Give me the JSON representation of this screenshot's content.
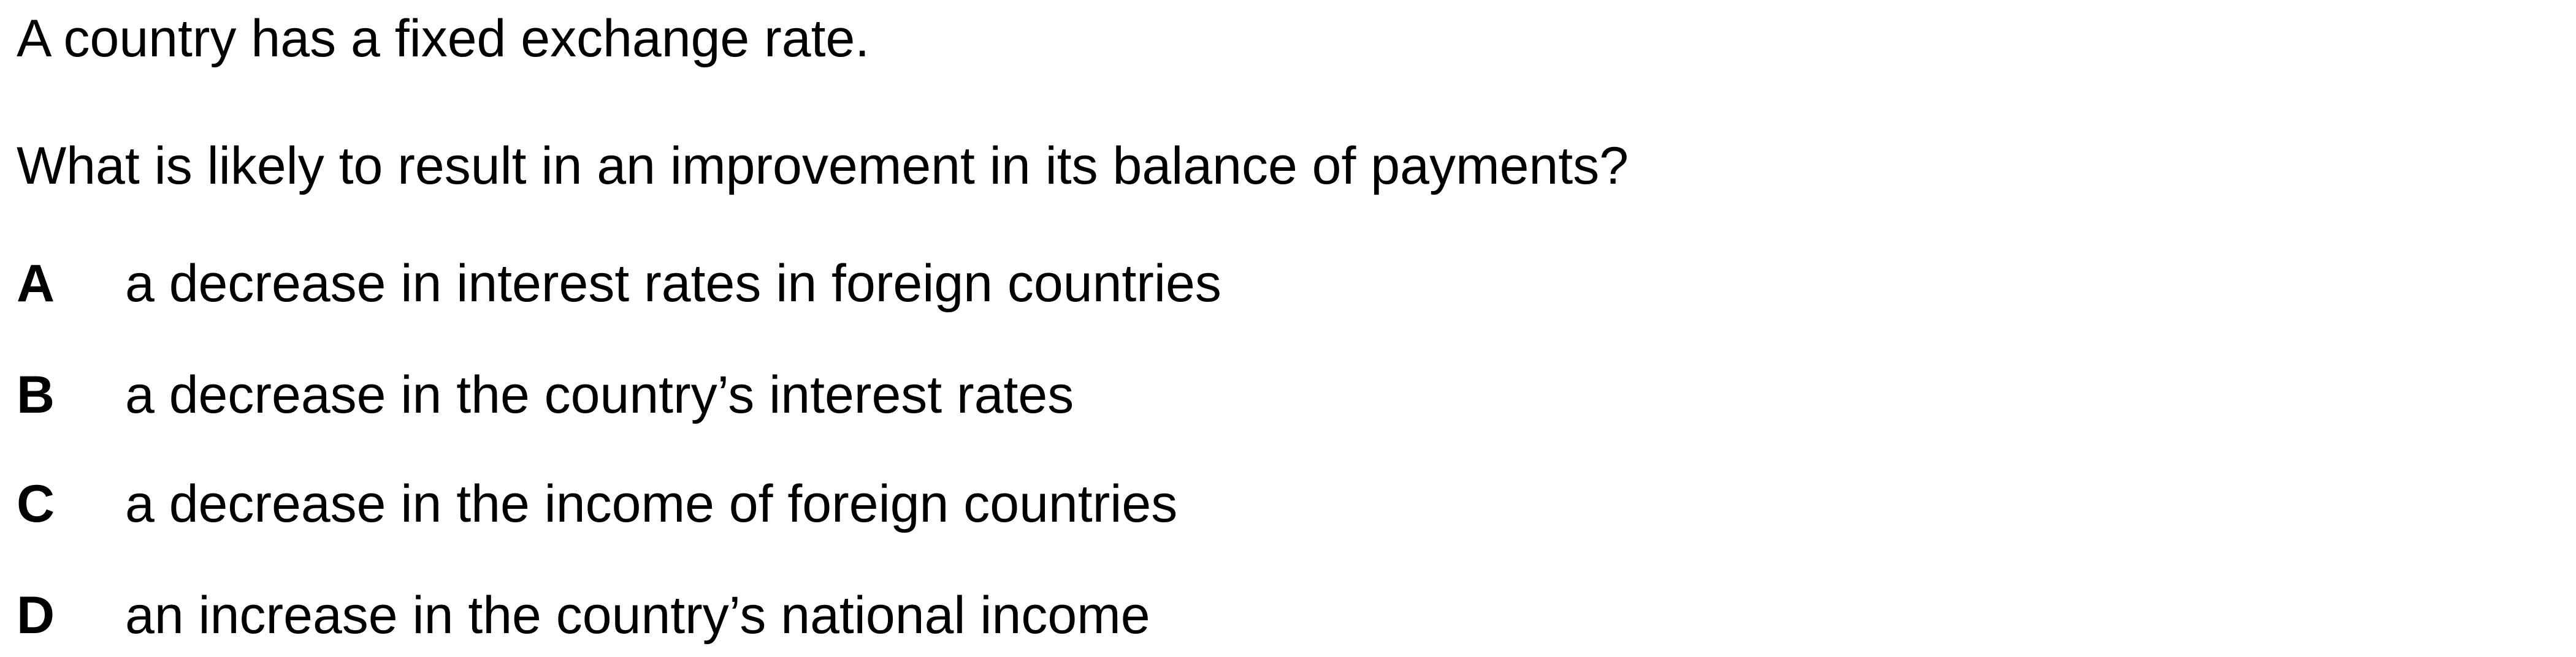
{
  "question": {
    "stem_line_1": "A country has a fixed exchange rate.",
    "stem_line_2": "What is likely to result in an improvement in its balance of payments?",
    "options": [
      {
        "letter": "A",
        "text": "a decrease in interest rates in foreign countries"
      },
      {
        "letter": "B",
        "text": "a decrease in the country’s interest rates"
      },
      {
        "letter": "C",
        "text": "a decrease in the income of foreign countries"
      },
      {
        "letter": "D",
        "text": "an increase in the country’s national income"
      }
    ]
  }
}
